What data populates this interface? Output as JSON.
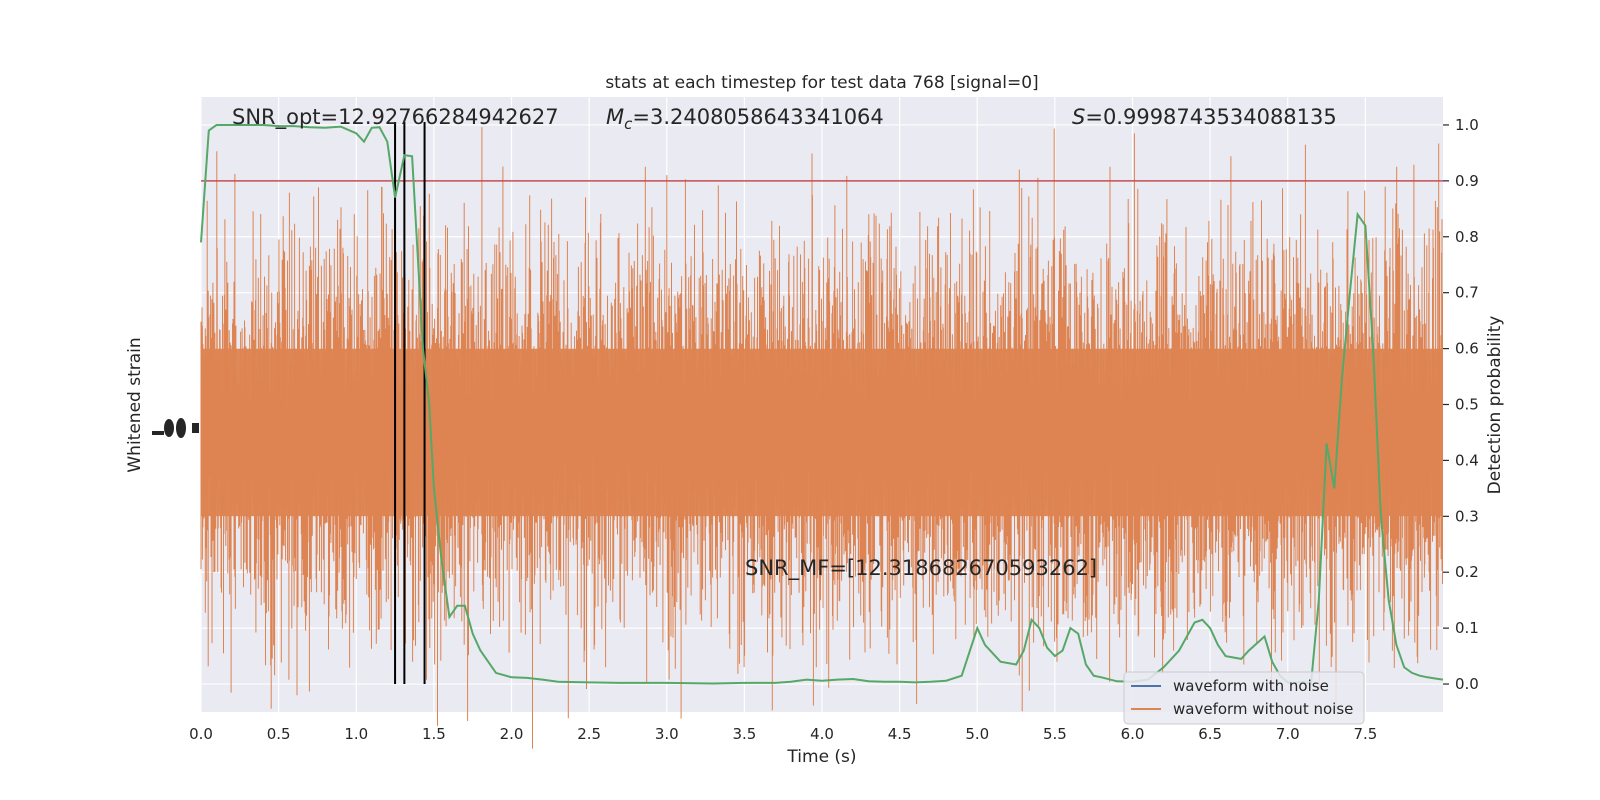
{
  "chart_data": {
    "type": "line",
    "title": "stats at each timestep for test data 768 [signal=0]",
    "xlabel": "Time (s)",
    "ylabel_left": "Whitened strain",
    "ylabel_right": "Detection probability",
    "xlim": [
      0.0,
      8.0
    ],
    "ylim_right": [
      -0.05,
      1.05
    ],
    "x_ticks": [
      "0.0",
      "0.5",
      "1.0",
      "1.5",
      "2.0",
      "2.5",
      "3.0",
      "3.5",
      "4.0",
      "4.5",
      "5.0",
      "5.5",
      "6.0",
      "6.5",
      "7.0",
      "7.5"
    ],
    "x_tick_values": [
      0.0,
      0.5,
      1.0,
      1.5,
      2.0,
      2.5,
      3.0,
      3.5,
      4.0,
      4.5,
      5.0,
      5.5,
      6.0,
      6.5,
      7.0,
      7.5
    ],
    "y_right_ticks": [
      "0.0",
      "0.1",
      "0.2",
      "0.3",
      "0.4",
      "0.5",
      "0.6",
      "0.7",
      "0.8",
      "0.9",
      "1.0"
    ],
    "y_right_tick_values": [
      0.0,
      0.1,
      0.2,
      0.3,
      0.4,
      0.5,
      0.6,
      0.7,
      0.8,
      0.9,
      1.0
    ],
    "grid": true,
    "threshold": 0.9,
    "vertical_markers": [
      1.25,
      1.31,
      1.44
    ],
    "annotations": {
      "snr_opt": "SNR_opt=12.92766284942627",
      "mc_sym": "M",
      "mc_sub": "c",
      "mc_val": "=3.2408058643341064",
      "s_sym": "S",
      "s_val": "=0.9998743534088135",
      "snr_mf": "SNR_MF=[12.318682670593262]"
    },
    "legend": {
      "placement": "lower-right",
      "entries": [
        {
          "label": "waveform with noise",
          "color": "#4c72b0"
        },
        {
          "label": "waveform without noise",
          "color": "#dd8452"
        }
      ]
    },
    "series": [
      {
        "name": "detection probability",
        "color": "#55a868",
        "x": [
          0.0,
          0.05,
          0.1,
          0.2,
          0.3,
          0.4,
          0.5,
          0.6,
          0.7,
          0.8,
          0.9,
          1.0,
          1.05,
          1.1,
          1.15,
          1.2,
          1.25,
          1.31,
          1.36,
          1.43,
          1.47,
          1.5,
          1.55,
          1.6,
          1.65,
          1.7,
          1.75,
          1.8,
          1.9,
          2.0,
          2.1,
          2.2,
          2.3,
          2.5,
          2.7,
          3.0,
          3.3,
          3.5,
          3.7,
          3.8,
          3.9,
          4.0,
          4.1,
          4.2,
          4.3,
          4.4,
          4.5,
          4.6,
          4.7,
          4.8,
          4.9,
          5.0,
          5.05,
          5.15,
          5.25,
          5.3,
          5.35,
          5.4,
          5.45,
          5.5,
          5.55,
          5.6,
          5.65,
          5.7,
          5.75,
          5.8,
          5.9,
          6.0,
          6.1,
          6.2,
          6.3,
          6.4,
          6.45,
          6.5,
          6.55,
          6.6,
          6.7,
          6.75,
          6.85,
          6.9,
          6.95,
          7.0,
          7.05,
          7.1,
          7.15,
          7.2,
          7.25,
          7.3,
          7.35,
          7.4,
          7.45,
          7.5,
          7.55,
          7.6,
          7.65,
          7.7,
          7.75,
          7.8,
          7.85,
          7.9,
          7.95,
          8.0
        ],
        "y": [
          0.79,
          0.99,
          1.0,
          1.0,
          1.0,
          1.0,
          0.998,
          0.998,
          0.996,
          0.995,
          0.997,
          0.985,
          0.97,
          0.995,
          0.996,
          0.97,
          0.87,
          0.946,
          0.944,
          0.6,
          0.5,
          0.35,
          0.22,
          0.12,
          0.14,
          0.14,
          0.09,
          0.06,
          0.02,
          0.012,
          0.011,
          0.008,
          0.004,
          0.003,
          0.002,
          0.002,
          0.001,
          0.002,
          0.002,
          0.004,
          0.008,
          0.006,
          0.008,
          0.009,
          0.005,
          0.004,
          0.004,
          0.003,
          0.004,
          0.006,
          0.015,
          0.1,
          0.07,
          0.04,
          0.035,
          0.06,
          0.115,
          0.1,
          0.065,
          0.05,
          0.06,
          0.1,
          0.09,
          0.035,
          0.015,
          0.012,
          0.005,
          0.004,
          0.008,
          0.03,
          0.06,
          0.11,
          0.115,
          0.1,
          0.07,
          0.05,
          0.045,
          0.06,
          0.085,
          0.04,
          0.015,
          0.003,
          0.002,
          0.004,
          0.0,
          0.15,
          0.43,
          0.35,
          0.55,
          0.7,
          0.84,
          0.82,
          0.6,
          0.3,
          0.15,
          0.07,
          0.03,
          0.02,
          0.015,
          0.012,
          0.01,
          0.008
        ]
      }
    ]
  }
}
